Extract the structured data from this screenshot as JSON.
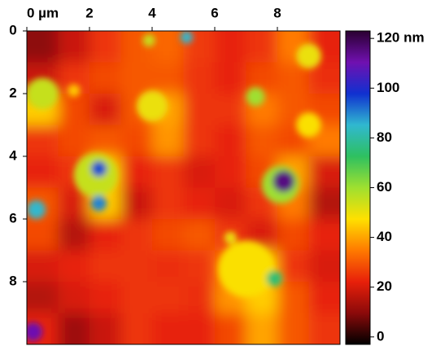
{
  "chart_data": {
    "type": "heatmap",
    "xlim": [
      0,
      10
    ],
    "ylim": [
      0,
      10
    ],
    "xticks": [
      {
        "value": 0,
        "label": "0 µm"
      },
      2,
      4,
      6,
      8
    ],
    "yticks": [
      0,
      2,
      4,
      6,
      8
    ],
    "clim": [
      -3,
      123
    ],
    "cticks": [
      0,
      20,
      40,
      60,
      80,
      100,
      {
        "value": 120,
        "label": "120 nm"
      }
    ],
    "colormap": [
      "#000000",
      "#8b0a0a",
      "#e8200a",
      "#ff7a00",
      "#ffe000",
      "#9fe030",
      "#2ec060",
      "#30b8d0",
      "#1030d0",
      "#7010b0",
      "#2a0030"
    ],
    "z": [
      [
        10,
        18,
        25,
        30,
        32,
        26,
        22,
        25,
        35,
        22
      ],
      [
        18,
        25,
        28,
        30,
        30,
        25,
        22,
        28,
        30,
        24
      ],
      [
        45,
        28,
        20,
        30,
        40,
        25,
        25,
        35,
        30,
        28
      ],
      [
        25,
        28,
        30,
        28,
        38,
        25,
        22,
        30,
        28,
        35
      ],
      [
        22,
        25,
        45,
        22,
        25,
        20,
        22,
        28,
        40,
        20
      ],
      [
        30,
        20,
        45,
        18,
        25,
        22,
        20,
        25,
        35,
        15
      ],
      [
        28,
        15,
        22,
        25,
        28,
        30,
        25,
        20,
        28,
        22
      ],
      [
        20,
        22,
        25,
        25,
        24,
        25,
        35,
        45,
        25,
        20
      ],
      [
        15,
        20,
        22,
        25,
        25,
        24,
        38,
        45,
        30,
        22
      ],
      [
        22,
        12,
        18,
        25,
        22,
        22,
        28,
        40,
        30,
        25
      ]
    ],
    "spots": [
      {
        "x": 2.2,
        "y": 4.6,
        "r": 0.7,
        "z": 55
      },
      {
        "x": 8.1,
        "y": 4.9,
        "r": 0.6,
        "z": 60
      },
      {
        "x": 7.0,
        "y": 7.6,
        "r": 0.9,
        "z": 48
      },
      {
        "x": 0.5,
        "y": 2.0,
        "r": 0.5,
        "z": 55
      },
      {
        "x": 4.0,
        "y": 2.4,
        "r": 0.5,
        "z": 50
      },
      {
        "x": 9.0,
        "y": 0.8,
        "r": 0.4,
        "z": 50
      },
      {
        "x": 9.0,
        "y": 3.0,
        "r": 0.4,
        "z": 48
      },
      {
        "x": 7.3,
        "y": 2.1,
        "r": 0.3,
        "z": 60
      },
      {
        "x": 1.5,
        "y": 1.9,
        "r": 0.2,
        "z": 45
      },
      {
        "x": 6.5,
        "y": 6.6,
        "r": 0.2,
        "z": 50
      },
      {
        "x": 3.9,
        "y": 0.3,
        "r": 0.2,
        "z": 55
      },
      {
        "x": 2.3,
        "y": 4.4,
        "r": 0.25,
        "z": 95
      },
      {
        "x": 2.3,
        "y": 5.5,
        "r": 0.25,
        "z": 90
      },
      {
        "x": 0.3,
        "y": 5.7,
        "r": 0.3,
        "z": 85
      },
      {
        "x": 0.2,
        "y": 9.6,
        "r": 0.3,
        "z": 110
      },
      {
        "x": 8.2,
        "y": 4.8,
        "r": 0.35,
        "z": 115
      },
      {
        "x": 5.1,
        "y": 0.2,
        "r": 0.2,
        "z": 85
      },
      {
        "x": 7.9,
        "y": 7.9,
        "r": 0.25,
        "z": 75
      }
    ]
  }
}
